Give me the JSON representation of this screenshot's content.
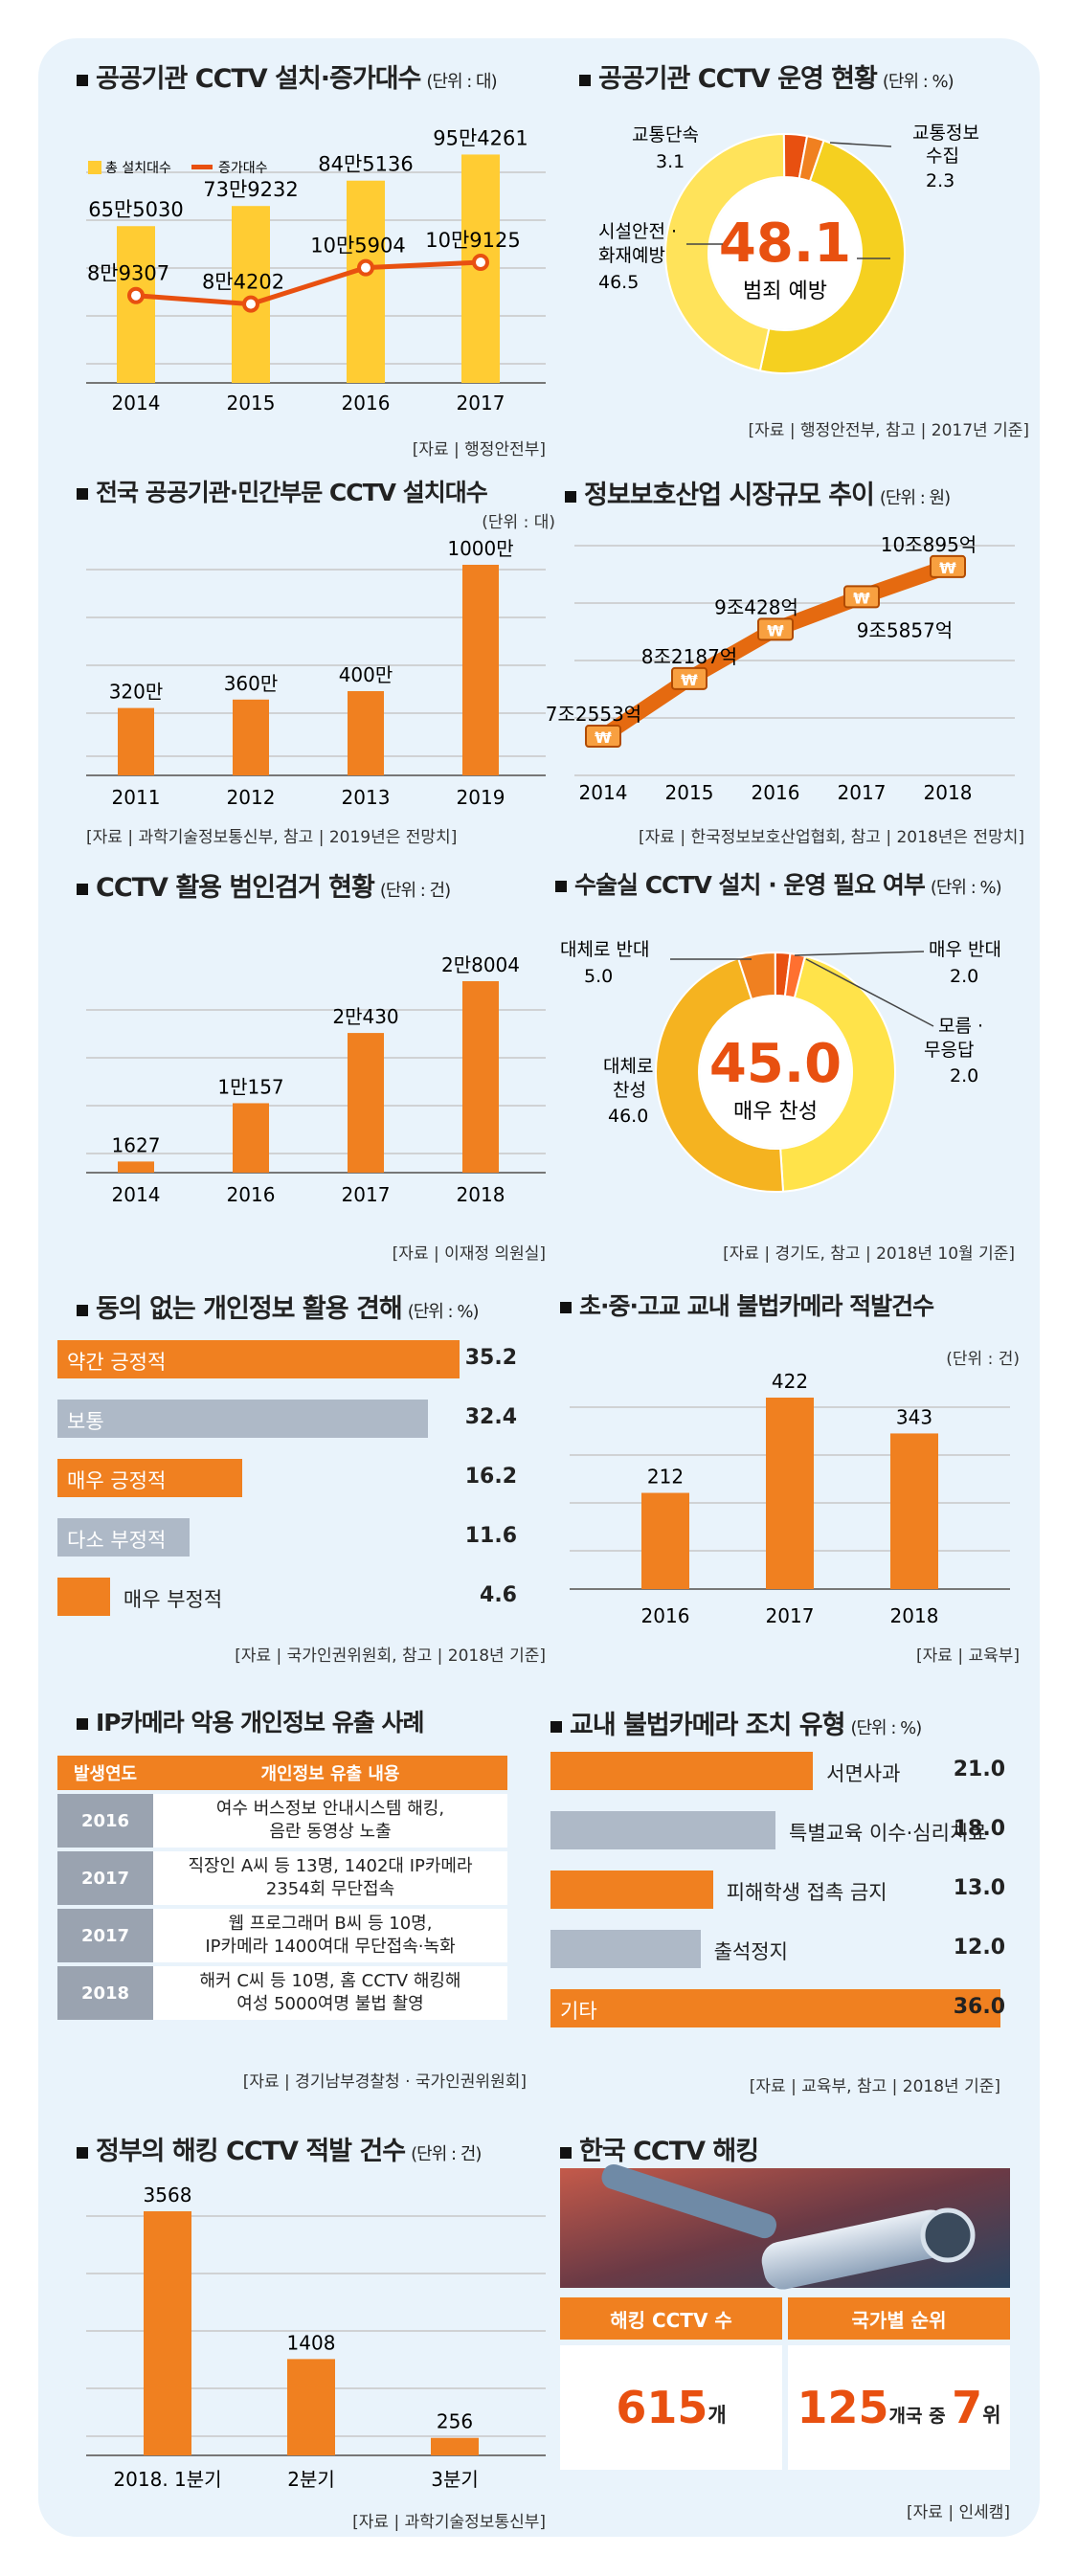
{
  "charts": {
    "install": {
      "title": "공공기관 CCTV 설치·증가대수",
      "unit": "(단위 : 대)",
      "source": "[자료 | 행정안전부]",
      "legend_total": "총 설치대수",
      "legend_increase": "증가대수"
    },
    "operation": {
      "title": "공공기관 CCTV 운영 현황",
      "unit": "(단위 : %)",
      "source": "[자료 | 행정안전부, 참고 | 2017년 기준]",
      "center_value": "48.1",
      "center_label": "범죄 예방"
    },
    "sectors": {
      "title": "전국 공공기관·민간부문 CCTV 설치대수",
      "unit": "(단위 : 대)",
      "source": "[자료 | 과학기술정보통신부, 참고 | 2019년은 전망치]"
    },
    "market": {
      "title": "정보보호산업 시장규모 추이",
      "unit": "(단위 : 원)",
      "source": "[자료 | 한국정보보호산업협회, 참고 | 2018년은 전망치]"
    },
    "arrests": {
      "title": "CCTV 활용 범인검거 현황",
      "unit": "(단위 : 건)",
      "source": "[자료 | 이재정 의원실]"
    },
    "surgery": {
      "title": "수술실 CCTV 설치 · 운영 필요 여부",
      "unit": "(단위 : %)",
      "source": "[자료 | 경기도, 참고 | 2018년 10월 기준]",
      "center_value": "45.0",
      "center_label": "매우 찬성"
    },
    "consent": {
      "title": "동의 없는 개인정보 활용 견해",
      "unit": "(단위 : %)",
      "source": "[자료 | 국가인권위원회, 참고 | 2018년 기준]"
    },
    "school_cam": {
      "title": "초·중·고교 교내 불법카메라 적발건수",
      "unit": "(단위 : 건)",
      "source": "[자료 | 교육부]"
    },
    "ipcam": {
      "title": "IP카메라 악용 개인정보 유출 사례",
      "source": "[자료 | 경기남부경찰청 · 국가인권위원회]",
      "col_year": "발생연도",
      "col_desc": "개인정보 유출 내용",
      "rows": [
        {
          "year": "2016",
          "line1": "여수 버스정보 안내시스템 해킹,",
          "line2": "음란 동영상 노출"
        },
        {
          "year": "2017",
          "line1": "직장인 A씨 등 13명, 1402대 IP카메라",
          "line2": "2354회 무단접속"
        },
        {
          "year": "2017",
          "line1": "웹 프로그래머 B씨 등 10명,",
          "line2": "IP카메라 1400여대 무단접속·녹화"
        },
        {
          "year": "2018",
          "line1": "해커 C씨 등 10명, 홈 CCTV 해킹해",
          "line2": "여성 5000여명 불법 촬영"
        }
      ]
    },
    "measures": {
      "title": "교내 불법카메라 조치 유형",
      "unit": "(단위 : %)",
      "source": "[자료 | 교육부, 참고 | 2018년 기준]"
    },
    "hacking": {
      "title": "정부의 해킹 CCTV 적발 건수",
      "unit": "(단위 : 건)",
      "source": "[자료 | 과학기술정보통신부]"
    },
    "korea": {
      "title": "한국 CCTV 해킹",
      "source": "[자료 | 인세캠]",
      "col1": "해킹 CCTV 수",
      "col2": "국가별 순위",
      "num1": "615",
      "unit1": "개",
      "num2a": "125",
      "mid2": "개국 중 ",
      "num2b": "7",
      "unit2": "위"
    }
  },
  "colors": {
    "orange": "#f08020",
    "yellow": "#ffcc33",
    "gray": "#b9c3cf",
    "bg": "#e9f3fb",
    "red": "#e85010"
  },
  "chart_data": [
    {
      "type": "bar+line",
      "title": "공공기관 CCTV 설치·증가대수",
      "categories": [
        "2014",
        "2015",
        "2016",
        "2017"
      ],
      "series": [
        {
          "name": "총 설치대수",
          "values": [
            655030,
            739232,
            845136,
            954261
          ],
          "labels": [
            "65만5030",
            "73만9232",
            "84만5136",
            "95만4261"
          ]
        },
        {
          "name": "증가대수",
          "values": [
            89307,
            84202,
            105904,
            109125
          ],
          "labels": [
            "8만9307",
            "8만4202",
            "10만5904",
            "10만9125"
          ]
        }
      ]
    },
    {
      "type": "pie",
      "title": "공공기관 CCTV 운영 현황",
      "slices": [
        {
          "label": "범죄 예방",
          "value": 48.1
        },
        {
          "label": "시설안전 · 화재예방",
          "value": 46.5
        },
        {
          "label": "교통단속",
          "value": 3.1
        },
        {
          "label": "교통정보 수집",
          "value": 2.3
        }
      ]
    },
    {
      "type": "bar",
      "title": "전국 공공기관·민간부문 CCTV 설치대수",
      "categories": [
        "2011",
        "2012",
        "2013",
        "2019"
      ],
      "values": [
        3200000,
        3600000,
        4000000,
        10000000
      ],
      "labels": [
        "320만",
        "360만",
        "400만",
        "1000만"
      ]
    },
    {
      "type": "line",
      "title": "정보보호산업 시장규모 추이",
      "categories": [
        "2014",
        "2015",
        "2016",
        "2017",
        "2018"
      ],
      "values": [
        72553,
        82187,
        90428,
        95857,
        100895
      ],
      "labels": [
        "7조2553억",
        "8조2187억",
        "9조428억",
        "9조5857억",
        "10조895억"
      ]
    },
    {
      "type": "bar",
      "title": "CCTV 활용 범인검거 현황",
      "categories": [
        "2014",
        "2016",
        "2017",
        "2018"
      ],
      "values": [
        1627,
        10157,
        20430,
        28004
      ],
      "labels": [
        "1627",
        "1만157",
        "2만430",
        "2만8004"
      ]
    },
    {
      "type": "pie",
      "title": "수술실 CCTV 설치 · 운영 필요 여부",
      "slices": [
        {
          "label": "매우 찬성",
          "value": 45.0
        },
        {
          "label": "대체로 찬성",
          "value": 46.0
        },
        {
          "label": "대체로 반대",
          "value": 5.0
        },
        {
          "label": "매우 반대",
          "value": 2.0
        },
        {
          "label": "모름 · 무응답",
          "value": 2.0
        }
      ]
    },
    {
      "type": "bar",
      "orientation": "horizontal",
      "title": "동의 없는 개인정보 활용 견해",
      "categories": [
        "약간 긍정적",
        "보통",
        "매우 긍정적",
        "다소 부정적",
        "매우 부정적"
      ],
      "values": [
        35.2,
        32.4,
        16.2,
        11.6,
        4.6
      ]
    },
    {
      "type": "bar",
      "title": "초·중·고교 교내 불법카메라 적발건수",
      "categories": [
        "2016",
        "2017",
        "2018"
      ],
      "values": [
        212,
        422,
        343
      ]
    },
    {
      "type": "bar",
      "orientation": "horizontal",
      "title": "교내 불법카메라 조치 유형",
      "categories": [
        "서면사과",
        "특별교육 이수·심리치료",
        "피해학생 접촉 금지",
        "출석정지",
        "기타"
      ],
      "values": [
        21.0,
        18.0,
        13.0,
        12.0,
        36.0
      ]
    },
    {
      "type": "bar",
      "title": "정부의 해킹 CCTV 적발 건수",
      "categories": [
        "2018. 1분기",
        "2분기",
        "3분기"
      ],
      "values": [
        3568,
        1408,
        256
      ]
    }
  ]
}
